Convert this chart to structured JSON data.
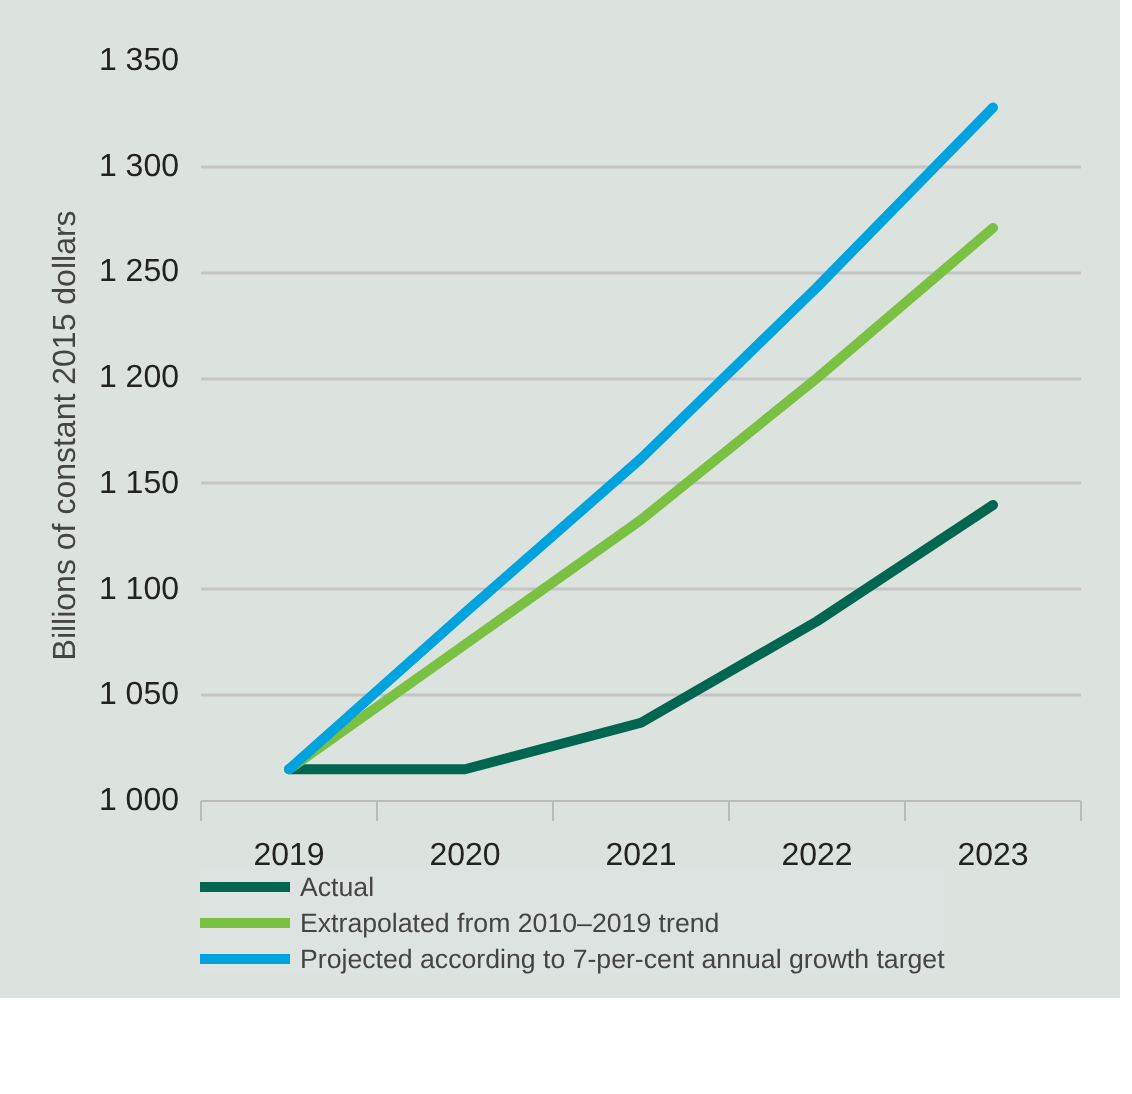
{
  "chart_data": {
    "type": "line",
    "ylabel": "Billions of constant  2015 dollars",
    "categories": [
      "2019",
      "2020",
      "2021",
      "2022",
      "2023"
    ],
    "series": [
      {
        "name": "Actual",
        "color": "#00664f",
        "values": [
          1015,
          1015,
          1037,
          1085,
          1140
        ]
      },
      {
        "name": "Extrapolated from 2010–2019 trend",
        "color": "#7ac143",
        "values": [
          1015,
          1074,
          1133,
          1200,
          1271
        ]
      },
      {
        "name": "Projected according to 7-per-cent annual growth target",
        "color": "#00a3dd",
        "values": [
          1015,
          1089,
          1162,
          1243,
          1328
        ]
      }
    ],
    "ylim": [
      1000,
      1350
    ],
    "yticks": [
      {
        "value": 1000,
        "label": "1 000"
      },
      {
        "value": 1050,
        "label": "1 050"
      },
      {
        "value": 1100,
        "label": "1 100"
      },
      {
        "value": 1150,
        "label": "1 150"
      },
      {
        "value": 1200,
        "label": "1 200"
      },
      {
        "value": 1250,
        "label": "1 250"
      },
      {
        "value": 1300,
        "label": "1 300"
      },
      {
        "value": 1350,
        "label": "1 350"
      }
    ],
    "grid": "y",
    "legend": "bottom",
    "line_style": "solid"
  }
}
